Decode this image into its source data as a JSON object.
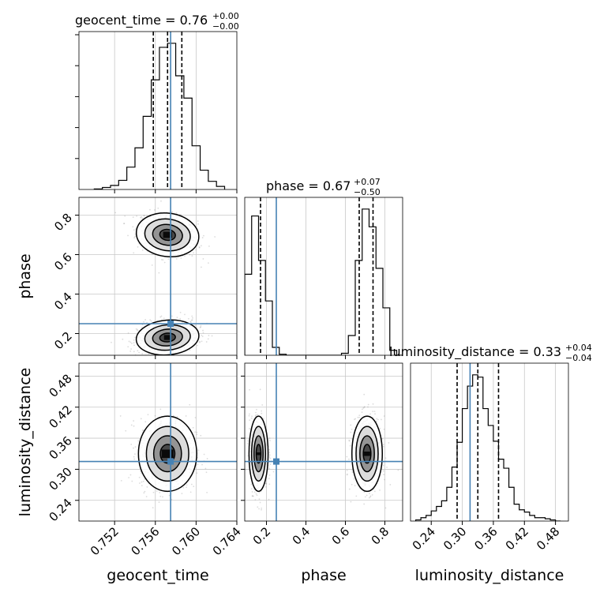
{
  "chart_data": {
    "type": "corner",
    "parameters": [
      "geocent_time",
      "phase",
      "luminosity_distance"
    ],
    "truths": {
      "geocent_time": 0.7575,
      "phase": 0.25,
      "luminosity_distance": 0.315
    },
    "titles": {
      "geocent_time": {
        "prefix": "geocent_time = ",
        "median": "0.76",
        "plus": "+0.00",
        "minus": "−0.00"
      },
      "phase": {
        "prefix": "phase = ",
        "median": "0.67",
        "plus": "+0.07",
        "minus": "−0.50"
      },
      "luminosity_distance": {
        "prefix": "luminosity_distance = ",
        "median": "0.33",
        "plus": "+0.04",
        "minus": "−0.04"
      }
    },
    "axis_labels": {
      "x": [
        "geocent_time",
        "phase",
        "luminosity_distance"
      ],
      "y": [
        "phase",
        "luminosity_distance"
      ]
    },
    "geocent_time": {
      "range": [
        0.7485,
        0.764
      ],
      "ticks": [
        0.752,
        0.756,
        0.76,
        0.764
      ],
      "tick_labels": [
        "0.752",
        "0.756",
        "0.760",
        "0.764"
      ],
      "quantiles": [
        0.7558,
        0.7572,
        0.7586
      ],
      "hist_edges": [
        0.75,
        0.7508,
        0.7516,
        0.7524,
        0.7532,
        0.754,
        0.7548,
        0.7556,
        0.7564,
        0.7572,
        0.758,
        0.7588,
        0.7596,
        0.7604,
        0.7612,
        0.762,
        0.7628
      ],
      "hist_counts": [
        0.5,
        2,
        4,
        9,
        22,
        41,
        72,
        108,
        140,
        144,
        112,
        90,
        43,
        19,
        8,
        3
      ]
    },
    "phase": {
      "range": [
        0.09,
        0.89
      ],
      "ticks": [
        0.2,
        0.4,
        0.6,
        0.8
      ],
      "tick_labels": [
        "0.2",
        "0.4",
        "0.6",
        "0.8"
      ],
      "quantiles": [
        0.17,
        0.67,
        0.74
      ],
      "hist_edges": [
        0.09,
        0.125,
        0.16,
        0.195,
        0.23,
        0.265,
        0.3,
        0.335,
        0.37,
        0.405,
        0.44,
        0.475,
        0.51,
        0.545,
        0.58,
        0.615,
        0.65,
        0.685,
        0.72,
        0.755,
        0.79,
        0.825,
        0.86,
        0.89
      ],
      "hist_counts": [
        82,
        141,
        96,
        55,
        8,
        1,
        0,
        0,
        0,
        0,
        0,
        0,
        0,
        0,
        2,
        20,
        96,
        148,
        130,
        88,
        48,
        5,
        0
      ]
    },
    "luminosity_distance": {
      "range": [
        0.2,
        0.505
      ],
      "ticks": [
        0.24,
        0.3,
        0.36,
        0.42,
        0.48
      ],
      "tick_labels": [
        "0.24",
        "0.30",
        "0.36",
        "0.42",
        "0.48"
      ],
      "quantiles": [
        0.29,
        0.33,
        0.37
      ],
      "hist_edges": [
        0.21,
        0.22,
        0.23,
        0.24,
        0.25,
        0.26,
        0.27,
        0.28,
        0.29,
        0.3,
        0.31,
        0.32,
        0.33,
        0.34,
        0.35,
        0.36,
        0.37,
        0.38,
        0.39,
        0.4,
        0.41,
        0.42,
        0.43,
        0.44,
        0.45,
        0.46,
        0.47,
        0.48,
        0.49
      ],
      "hist_counts": [
        1,
        3,
        5,
        9,
        13,
        18,
        30,
        48,
        70,
        100,
        120,
        130,
        128,
        100,
        85,
        71,
        55,
        47,
        30,
        15,
        10,
        8,
        5,
        3,
        3,
        2,
        1,
        0
      ]
    },
    "modes_2d": {
      "geocent_time_vs_phase": [
        {
          "x": 0.7572,
          "y": 0.7,
          "sx": 0.0014,
          "sy": 0.05,
          "corr": -0.3
        },
        {
          "x": 0.7572,
          "y": 0.18,
          "sx": 0.0014,
          "sy": 0.04,
          "corr": 0.2
        }
      ],
      "geocent_time_vs_luminosity_distance": [
        {
          "x": 0.7572,
          "y": 0.33,
          "sx": 0.0013,
          "sy": 0.033,
          "corr": 0.0
        }
      ],
      "phase_vs_luminosity_distance": [
        {
          "x": 0.16,
          "y": 0.33,
          "sx": 0.022,
          "sy": 0.033,
          "corr": 0.0
        },
        {
          "x": 0.71,
          "y": 0.33,
          "sx": 0.035,
          "sy": 0.033,
          "corr": 0.0
        }
      ]
    },
    "colors": {
      "truth": "#4682b4",
      "hist": "#000000",
      "grid": "#c8c8c8",
      "points": "#9a9a9a"
    },
    "grid": true
  }
}
